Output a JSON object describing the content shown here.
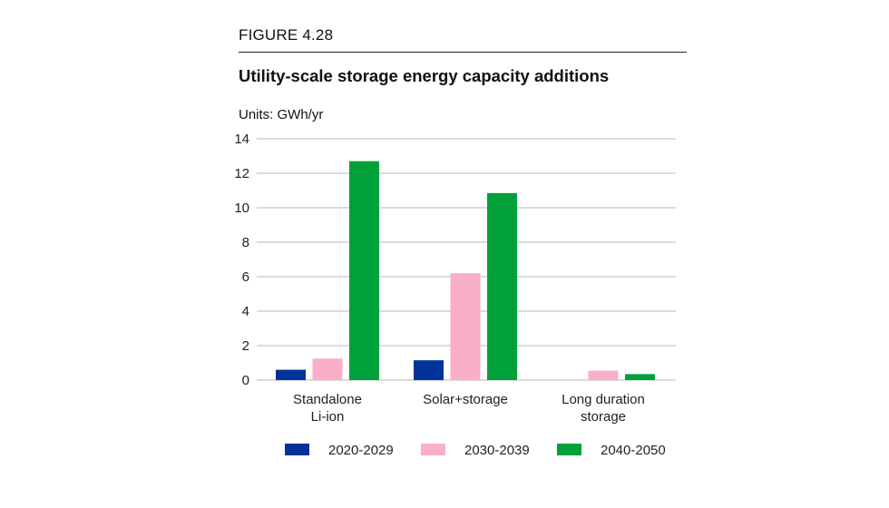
{
  "header": {
    "figure_label": "FIGURE 4.28",
    "title": "Utility-scale storage energy capacity additions",
    "units": "Units: GWh/yr"
  },
  "chart_data": {
    "type": "bar",
    "title": "Utility-scale storage energy capacity additions",
    "xlabel": "",
    "ylabel": "GWh/yr",
    "ylim": [
      0,
      14
    ],
    "yticks": [
      0,
      2,
      4,
      6,
      8,
      10,
      12,
      14
    ],
    "grid": true,
    "legend_position": "bottom",
    "categories": [
      [
        "Standalone",
        "Li-ion"
      ],
      [
        "Solar+storage"
      ],
      [
        "Long duration",
        "storage"
      ]
    ],
    "series": [
      {
        "name": "2020-2029",
        "color": "#003399",
        "values": [
          0.6,
          1.15,
          0
        ]
      },
      {
        "name": "2030-2039",
        "color": "#f9afc9",
        "values": [
          1.25,
          6.2,
          0.55
        ]
      },
      {
        "name": "2040-2050",
        "color": "#00a13a",
        "values": [
          12.7,
          10.85,
          0.35
        ]
      }
    ]
  }
}
